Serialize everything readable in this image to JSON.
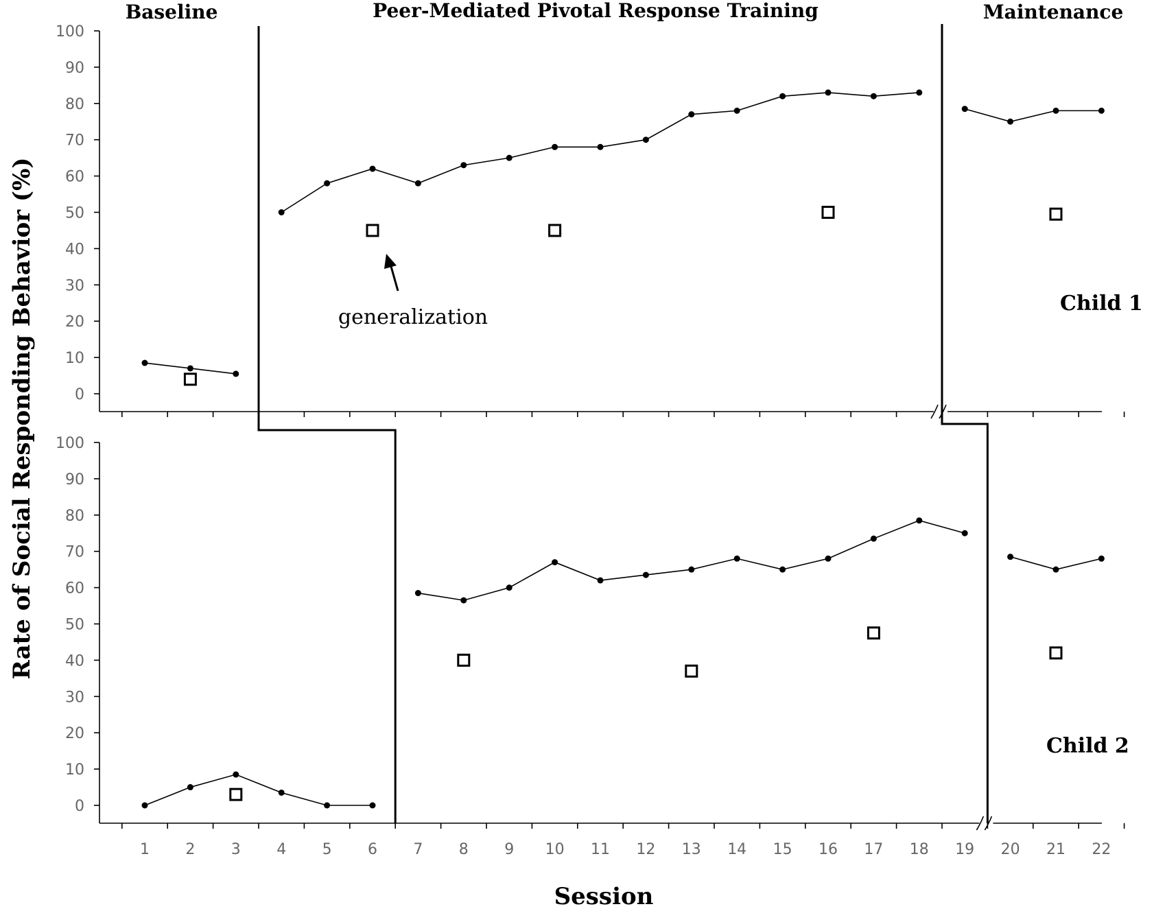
{
  "chart_data": {
    "type": "line",
    "phases": [
      "Baseline",
      "Peer-Mediated Pivotal Response Training",
      "Maintenance"
    ],
    "xlabel": "Session",
    "ylabel": "Rate of Social Responding Behavior (%)",
    "x_ticks": [
      1,
      2,
      3,
      4,
      5,
      6,
      7,
      8,
      9,
      10,
      11,
      12,
      13,
      14,
      15,
      16,
      17,
      18,
      19,
      20,
      21,
      22
    ],
    "y_ticks": [
      0,
      10,
      20,
      30,
      40,
      50,
      60,
      70,
      80,
      90,
      100
    ],
    "ylim": [
      0,
      100
    ],
    "xlim": [
      1,
      22
    ],
    "annotation": "generalization",
    "panels": [
      {
        "label": "Child 1",
        "phase_change_after": [
          3.5,
          18.5
        ],
        "series": [
          {
            "phase": 0,
            "x": [
              1,
              2,
              3
            ],
            "y": [
              8.5,
              7,
              5.5
            ]
          },
          {
            "phase": 1,
            "x": [
              4,
              5,
              6,
              7,
              8,
              9,
              10,
              11,
              12,
              13,
              14,
              15,
              16,
              17,
              18
            ],
            "y": [
              50,
              58,
              62,
              58,
              63,
              65,
              68,
              68,
              70,
              77,
              78,
              82,
              83,
              82,
              83
            ]
          },
          {
            "phase": 2,
            "x": [
              19,
              20,
              21,
              22
            ],
            "y": [
              78.5,
              75,
              78,
              78
            ]
          }
        ],
        "generalization": {
          "x": [
            2,
            6,
            10,
            16,
            21
          ],
          "y": [
            4,
            45,
            45,
            50,
            49.5
          ]
        }
      },
      {
        "label": "Child 2",
        "phase_change_after": [
          6.5,
          19.5
        ],
        "series": [
          {
            "phase": 0,
            "x": [
              1,
              2,
              3,
              4,
              5,
              6
            ],
            "y": [
              0,
              5,
              8.5,
              3.5,
              0,
              0
            ]
          },
          {
            "phase": 1,
            "x": [
              7,
              8,
              9,
              10,
              11,
              12,
              13,
              14,
              15,
              16,
              17,
              18,
              19
            ],
            "y": [
              58.5,
              56.5,
              60,
              67,
              62,
              63.5,
              65,
              68,
              65,
              68,
              73.5,
              78.5,
              75
            ]
          },
          {
            "phase": 2,
            "x": [
              20,
              21,
              22
            ],
            "y": [
              68.5,
              65,
              68
            ]
          }
        ],
        "generalization": {
          "x": [
            3,
            8,
            13,
            17,
            21
          ],
          "y": [
            3,
            40,
            37,
            47.5,
            42
          ]
        }
      }
    ]
  }
}
